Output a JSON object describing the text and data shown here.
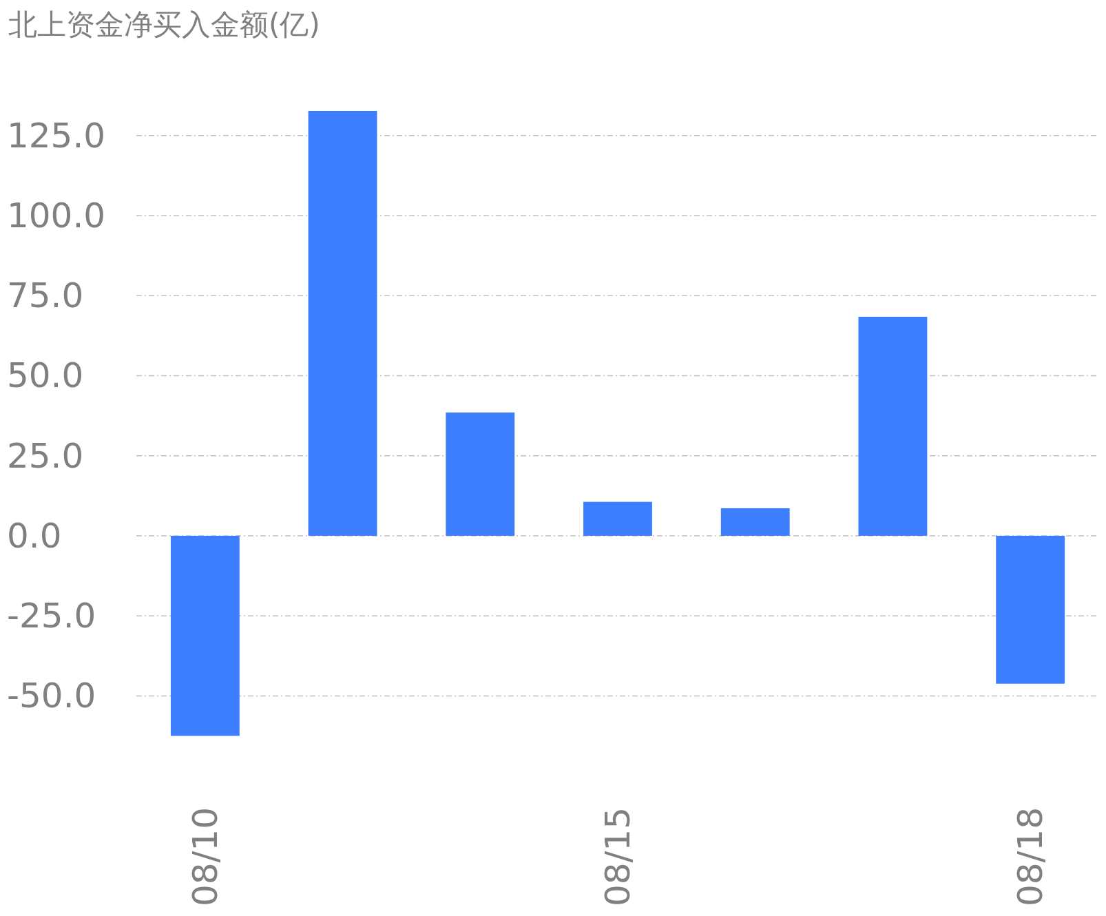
{
  "chart_data": {
    "type": "bar",
    "title": "北上资金净买入金额(亿)",
    "categories": [
      "08/10",
      null,
      null,
      "08/15",
      null,
      null,
      "08/18"
    ],
    "values": [
      -62.5,
      132.7,
      38.5,
      10.6,
      8.6,
      68.4,
      -46.2
    ],
    "color": "#3d7eff",
    "ylim": [
      -62.5,
      132.7
    ],
    "yticks": [
      {
        "value": -50,
        "label": "-50.0"
      },
      {
        "value": -25,
        "label": "-25.0"
      },
      {
        "value": 0,
        "label": "0.0"
      },
      {
        "value": 25,
        "label": "25.0"
      },
      {
        "value": 50,
        "label": "50.0"
      },
      {
        "value": 75,
        "label": "75.0"
      },
      {
        "value": 100,
        "label": "100.0"
      },
      {
        "value": 125,
        "label": "125.0"
      }
    ],
    "grid": "y"
  }
}
